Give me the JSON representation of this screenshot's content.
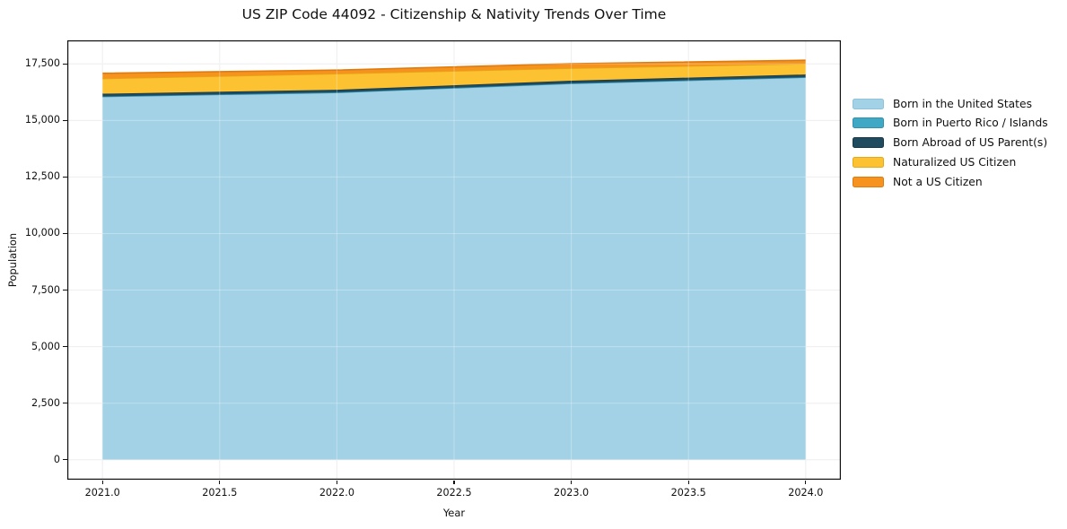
{
  "figure": {
    "title": "US ZIP Code 44092 - Citizenship & Nativity Trends Over Time",
    "xlabel": "Year",
    "ylabel": "Population"
  },
  "chart_data": {
    "type": "area",
    "stacked": true,
    "title": "US ZIP Code 44092 - Citizenship & Nativity Trends Over Time",
    "xlabel": "Year",
    "ylabel": "Population",
    "x": [
      2021,
      2022,
      2023,
      2024
    ],
    "series": [
      {
        "name": "Born in the United States",
        "color": "#a3d2e7",
        "edge": "#8fc2db",
        "values": [
          16050,
          16230,
          16630,
          16900
        ]
      },
      {
        "name": "Born in Puerto Rico / Islands",
        "color": "#3ea8c5",
        "edge": "#2f92ae",
        "values": [
          10,
          10,
          10,
          10
        ]
      },
      {
        "name": "Born Abroad of US Parent(s)",
        "color": "#204a5e",
        "edge": "#16394a",
        "values": [
          120,
          115,
          115,
          120
        ]
      },
      {
        "name": "Naturalized US Citizen",
        "color": "#fcc231",
        "edge": "#e5a816",
        "values": [
          670,
          710,
          555,
          475
        ]
      },
      {
        "name": "Not a US Citizen",
        "color": "#f6921e",
        "edge": "#df7b0d",
        "values": [
          235,
          160,
          200,
          155
        ]
      }
    ],
    "xtick_values": [
      2021.0,
      2021.5,
      2022.0,
      2022.5,
      2023.0,
      2023.5,
      2024.0
    ],
    "xtick_labels": [
      "2021.0",
      "2021.5",
      "2022.0",
      "2022.5",
      "2023.0",
      "2023.5",
      "2024.0"
    ],
    "ytick_values": [
      0,
      2500,
      5000,
      7500,
      10000,
      12500,
      15000,
      17500
    ],
    "ytick_labels": [
      "0",
      "2,500",
      "5,000",
      "7,500",
      "10,000",
      "12,500",
      "15,000",
      "17,500"
    ],
    "xlim": [
      2020.85,
      2024.15
    ],
    "ylim": [
      -880,
      18540
    ],
    "grid": true,
    "grid_color": "#e9e9e9",
    "legend_position": "right-outside"
  }
}
